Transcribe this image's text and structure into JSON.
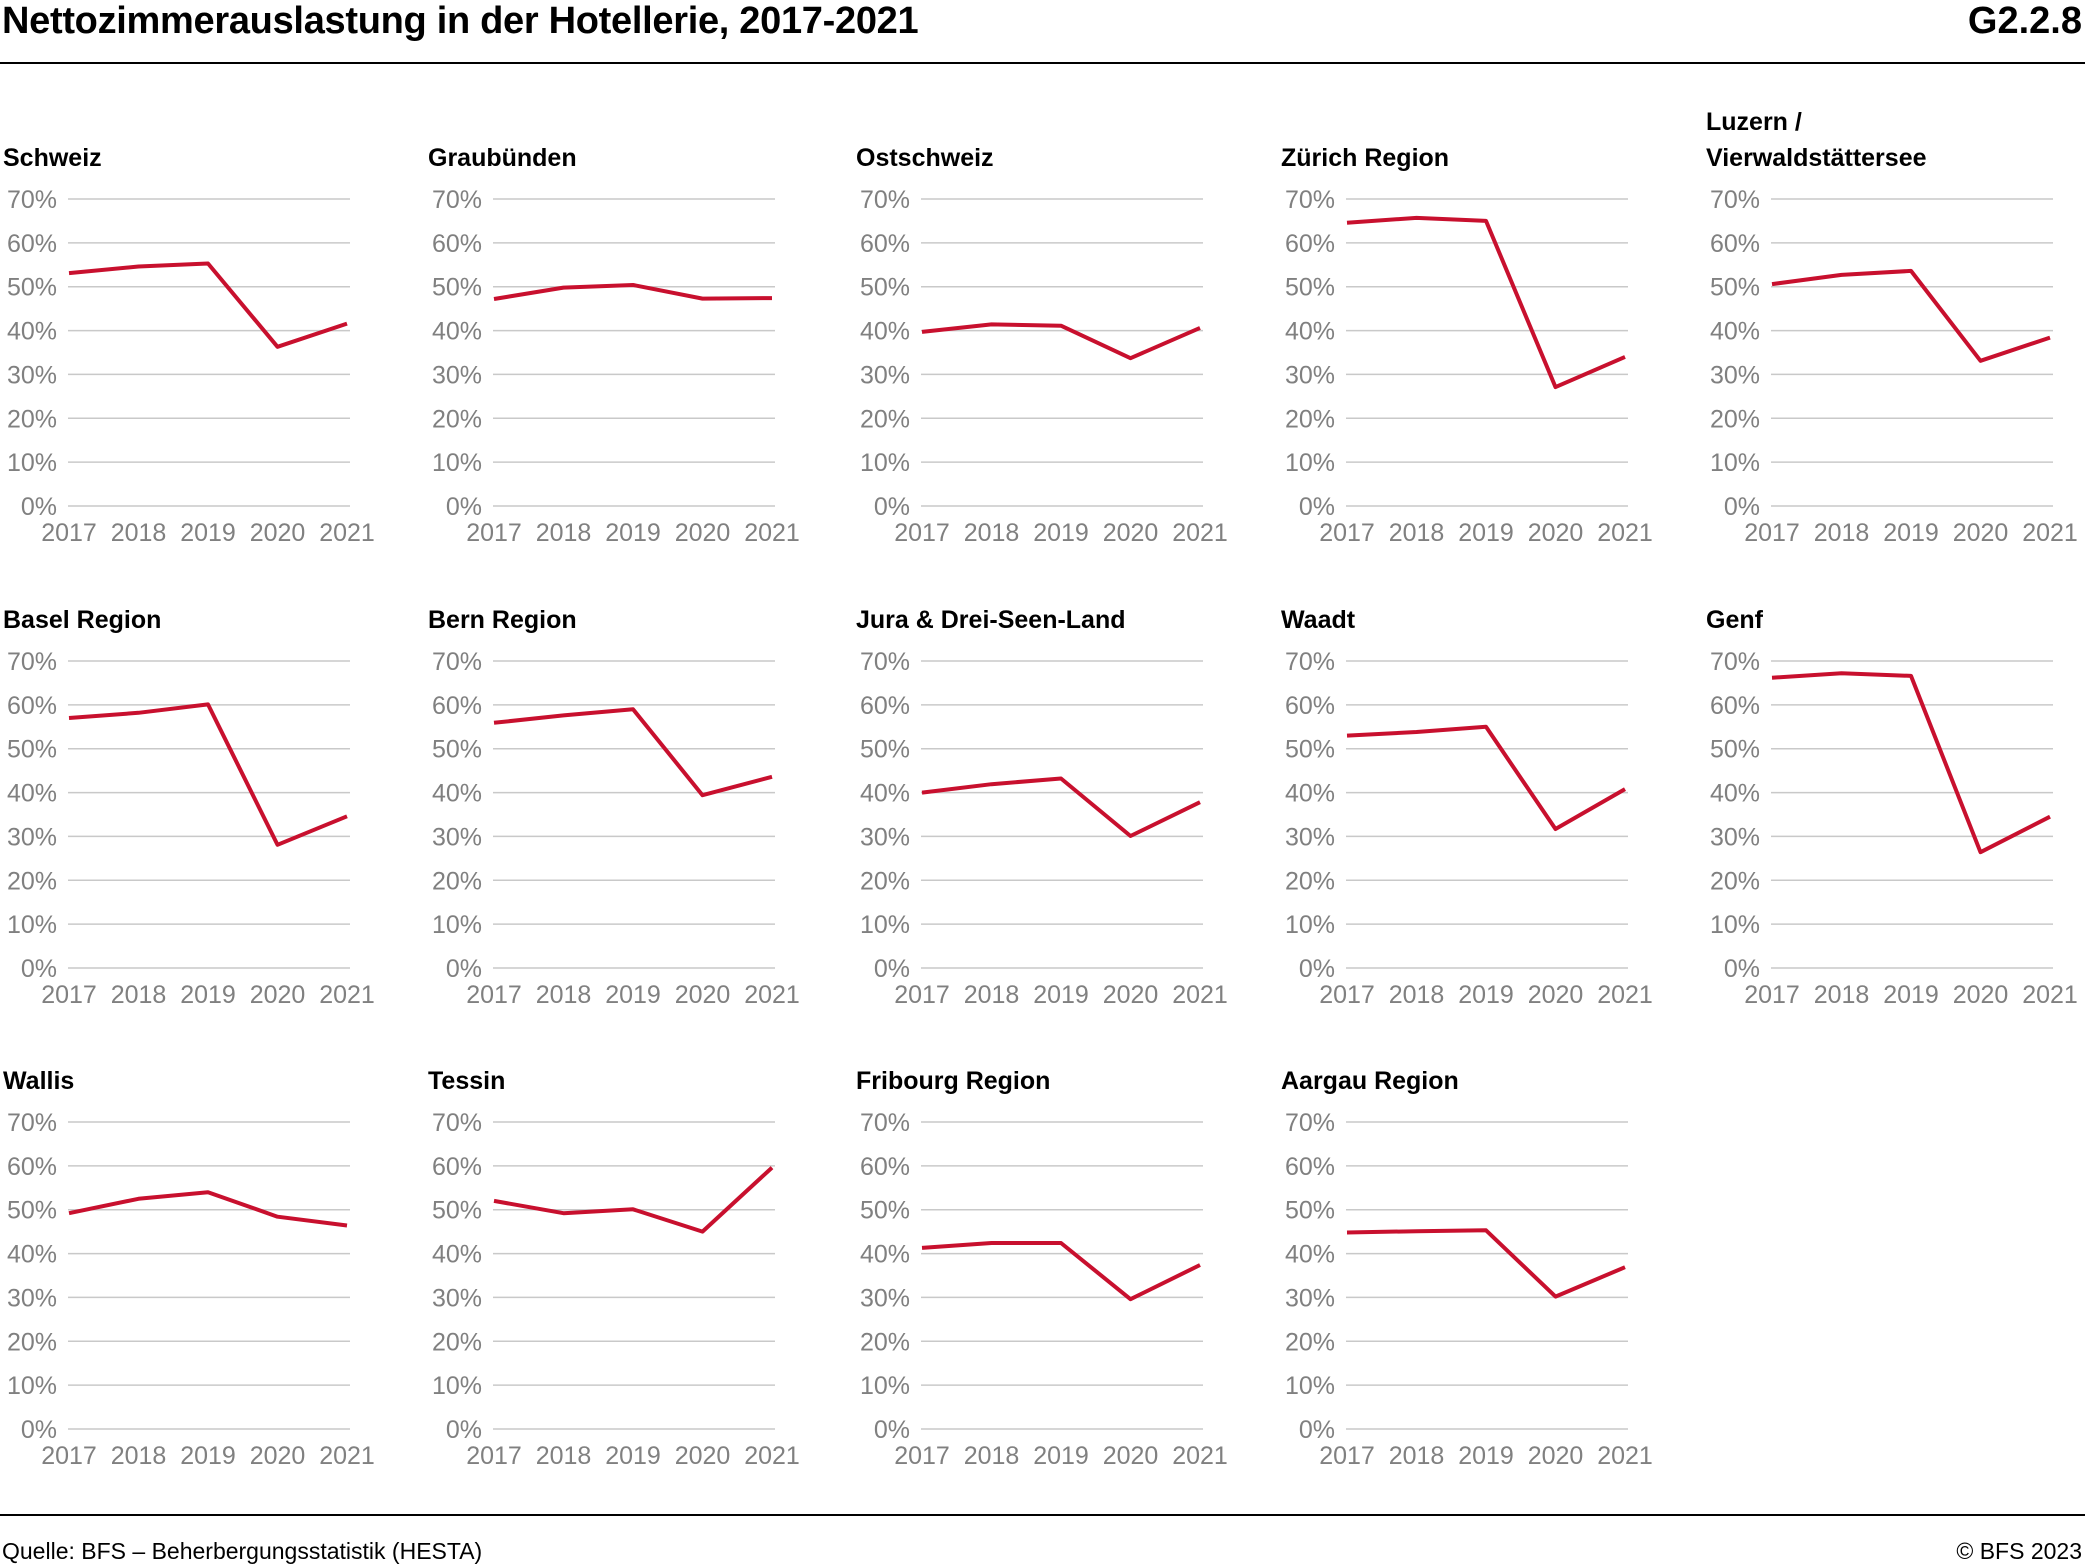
{
  "header": {
    "title": "Nettozimmerauslastung in der Hotellerie, 2017-2021",
    "code": "G2.2.8"
  },
  "footer": {
    "source": "Quelle: BFS – Beherbergungsstatistik (HESTA)",
    "copyright": "© BFS 2023"
  },
  "colors": {
    "line": "#c8102e",
    "grid": "#c9c9c9",
    "tick_text": "#808080"
  },
  "chart_data": [
    {
      "type": "line",
      "title": "Schweiz",
      "categories": [
        "2017",
        "2018",
        "2019",
        "2020",
        "2021"
      ],
      "values": [
        53.1,
        54.6,
        55.3,
        36.3,
        41.6
      ],
      "ylim": [
        0,
        70
      ],
      "yticks": [
        "0%",
        "10%",
        "20%",
        "30%",
        "40%",
        "50%",
        "60%",
        "70%"
      ],
      "grid": true
    },
    {
      "type": "line",
      "title": "Graubünden",
      "categories": [
        "2017",
        "2018",
        "2019",
        "2020",
        "2021"
      ],
      "values": [
        47.2,
        49.8,
        50.4,
        47.3,
        47.4
      ],
      "ylim": [
        0,
        70
      ],
      "yticks": [
        "0%",
        "10%",
        "20%",
        "30%",
        "40%",
        "50%",
        "60%",
        "70%"
      ],
      "grid": true
    },
    {
      "type": "line",
      "title": "Ostschweiz",
      "categories": [
        "2017",
        "2018",
        "2019",
        "2020",
        "2021"
      ],
      "values": [
        39.7,
        41.4,
        41.1,
        33.7,
        40.6
      ],
      "ylim": [
        0,
        70
      ],
      "yticks": [
        "0%",
        "10%",
        "20%",
        "30%",
        "40%",
        "50%",
        "60%",
        "70%"
      ],
      "grid": true
    },
    {
      "type": "line",
      "title": "Zürich Region",
      "categories": [
        "2017",
        "2018",
        "2019",
        "2020",
        "2021"
      ],
      "values": [
        64.6,
        65.7,
        65.0,
        27.1,
        34.0
      ],
      "ylim": [
        0,
        70
      ],
      "yticks": [
        "0%",
        "10%",
        "20%",
        "30%",
        "40%",
        "50%",
        "60%",
        "70%"
      ],
      "grid": true
    },
    {
      "type": "line",
      "title_lines": [
        "Luzern /",
        "Vierwaldstättersee"
      ],
      "categories": [
        "2017",
        "2018",
        "2019",
        "2020",
        "2021"
      ],
      "values": [
        50.6,
        52.7,
        53.6,
        33.1,
        38.4
      ],
      "ylim": [
        0,
        70
      ],
      "yticks": [
        "0%",
        "10%",
        "20%",
        "30%",
        "40%",
        "50%",
        "60%",
        "70%"
      ],
      "grid": true
    },
    {
      "type": "line",
      "title": "Basel Region",
      "categories": [
        "2017",
        "2018",
        "2019",
        "2020",
        "2021"
      ],
      "values": [
        57.0,
        58.2,
        60.1,
        28.1,
        34.6
      ],
      "ylim": [
        0,
        70
      ],
      "yticks": [
        "0%",
        "10%",
        "20%",
        "30%",
        "40%",
        "50%",
        "60%",
        "70%"
      ],
      "grid": true
    },
    {
      "type": "line",
      "title": "Bern Region",
      "categories": [
        "2017",
        "2018",
        "2019",
        "2020",
        "2021"
      ],
      "values": [
        55.9,
        57.6,
        59.0,
        39.4,
        43.6
      ],
      "ylim": [
        0,
        70
      ],
      "yticks": [
        "0%",
        "10%",
        "20%",
        "30%",
        "40%",
        "50%",
        "60%",
        "70%"
      ],
      "grid": true
    },
    {
      "type": "line",
      "title": "Jura & Drei-Seen-Land",
      "categories": [
        "2017",
        "2018",
        "2019",
        "2020",
        "2021"
      ],
      "values": [
        40.0,
        41.9,
        43.2,
        30.1,
        37.8
      ],
      "ylim": [
        0,
        70
      ],
      "yticks": [
        "0%",
        "10%",
        "20%",
        "30%",
        "40%",
        "50%",
        "60%",
        "70%"
      ],
      "grid": true
    },
    {
      "type": "line",
      "title": "Waadt",
      "categories": [
        "2017",
        "2018",
        "2019",
        "2020",
        "2021"
      ],
      "values": [
        53.0,
        53.8,
        55.0,
        31.7,
        40.8
      ],
      "ylim": [
        0,
        70
      ],
      "yticks": [
        "0%",
        "10%",
        "20%",
        "30%",
        "40%",
        "50%",
        "60%",
        "70%"
      ],
      "grid": true
    },
    {
      "type": "line",
      "title": "Genf",
      "categories": [
        "2017",
        "2018",
        "2019",
        "2020",
        "2021"
      ],
      "values": [
        66.2,
        67.2,
        66.6,
        26.4,
        34.5
      ],
      "ylim": [
        0,
        70
      ],
      "yticks": [
        "0%",
        "10%",
        "20%",
        "30%",
        "40%",
        "50%",
        "60%",
        "70%"
      ],
      "grid": true
    },
    {
      "type": "line",
      "title": "Wallis",
      "categories": [
        "2017",
        "2018",
        "2019",
        "2020",
        "2021"
      ],
      "values": [
        49.2,
        52.5,
        54.0,
        48.4,
        46.4
      ],
      "ylim": [
        0,
        70
      ],
      "yticks": [
        "0%",
        "10%",
        "20%",
        "30%",
        "40%",
        "50%",
        "60%",
        "70%"
      ],
      "grid": true
    },
    {
      "type": "line",
      "title": "Tessin",
      "categories": [
        "2017",
        "2018",
        "2019",
        "2020",
        "2021"
      ],
      "values": [
        52.0,
        49.2,
        50.1,
        45.0,
        59.6
      ],
      "ylim": [
        0,
        70
      ],
      "yticks": [
        "0%",
        "10%",
        "20%",
        "30%",
        "40%",
        "50%",
        "60%",
        "70%"
      ],
      "grid": true
    },
    {
      "type": "line",
      "title": "Fribourg Region",
      "categories": [
        "2017",
        "2018",
        "2019",
        "2020",
        "2021"
      ],
      "values": [
        41.3,
        42.4,
        42.4,
        29.6,
        37.4
      ],
      "ylim": [
        0,
        70
      ],
      "yticks": [
        "0%",
        "10%",
        "20%",
        "30%",
        "40%",
        "50%",
        "60%",
        "70%"
      ],
      "grid": true
    },
    {
      "type": "line",
      "title": "Aargau Region",
      "categories": [
        "2017",
        "2018",
        "2019",
        "2020",
        "2021"
      ],
      "values": [
        44.8,
        45.1,
        45.3,
        30.2,
        36.9
      ],
      "ylim": [
        0,
        70
      ],
      "yticks": [
        "0%",
        "10%",
        "20%",
        "30%",
        "40%",
        "50%",
        "60%",
        "70%"
      ],
      "grid": true
    }
  ]
}
